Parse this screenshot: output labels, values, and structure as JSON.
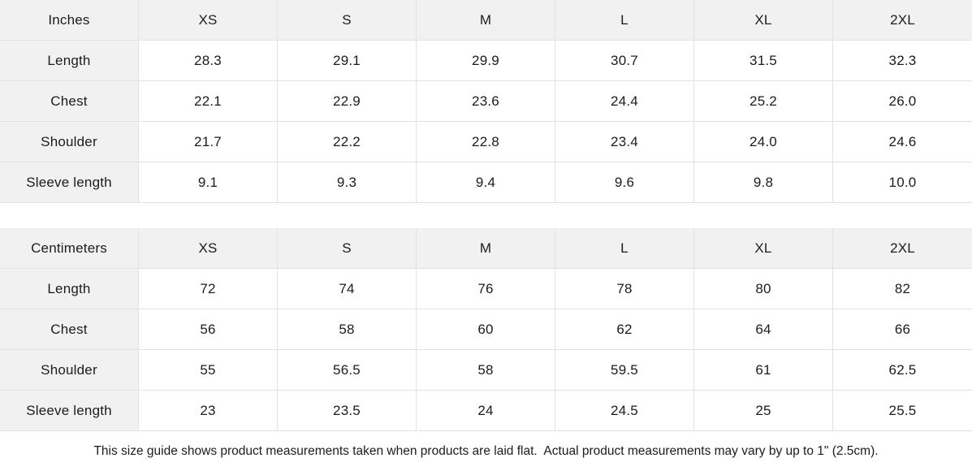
{
  "colors": {
    "header_bg": "#f1f1f1",
    "label_bg": "#f1f1f1",
    "border": "#e2e2e2",
    "text": "#1c1c1c",
    "background": "#ffffff"
  },
  "tables": [
    {
      "id": "inches",
      "unit_label": "Inches",
      "sizes": [
        "XS",
        "S",
        "M",
        "L",
        "XL",
        "2XL"
      ],
      "rows": [
        {
          "label": "Length",
          "values": [
            "28.3",
            "29.1",
            "29.9",
            "30.7",
            "31.5",
            "32.3"
          ]
        },
        {
          "label": "Chest",
          "values": [
            "22.1",
            "22.9",
            "23.6",
            "24.4",
            "25.2",
            "26.0"
          ]
        },
        {
          "label": "Shoulder",
          "values": [
            "21.7",
            "22.2",
            "22.8",
            "23.4",
            "24.0",
            "24.6"
          ]
        },
        {
          "label": "Sleeve length",
          "values": [
            "9.1",
            "9.3",
            "9.4",
            "9.6",
            "9.8",
            "10.0"
          ]
        }
      ]
    },
    {
      "id": "centimeters",
      "unit_label": "Centimeters",
      "sizes": [
        "XS",
        "S",
        "M",
        "L",
        "XL",
        "2XL"
      ],
      "rows": [
        {
          "label": "Length",
          "values": [
            "72",
            "74",
            "76",
            "78",
            "80",
            "82"
          ]
        },
        {
          "label": "Chest",
          "values": [
            "56",
            "58",
            "60",
            "62",
            "64",
            "66"
          ]
        },
        {
          "label": "Shoulder",
          "values": [
            "55",
            "56.5",
            "58",
            "59.5",
            "61",
            "62.5"
          ]
        },
        {
          "label": "Sleeve length",
          "values": [
            "23",
            "23.5",
            "24",
            "24.5",
            "25",
            "25.5"
          ]
        }
      ]
    }
  ],
  "footer": {
    "note": "This size guide shows product measurements taken when products are laid flat.  Actual product measurements may vary by up to 1\" (2.5cm)."
  }
}
